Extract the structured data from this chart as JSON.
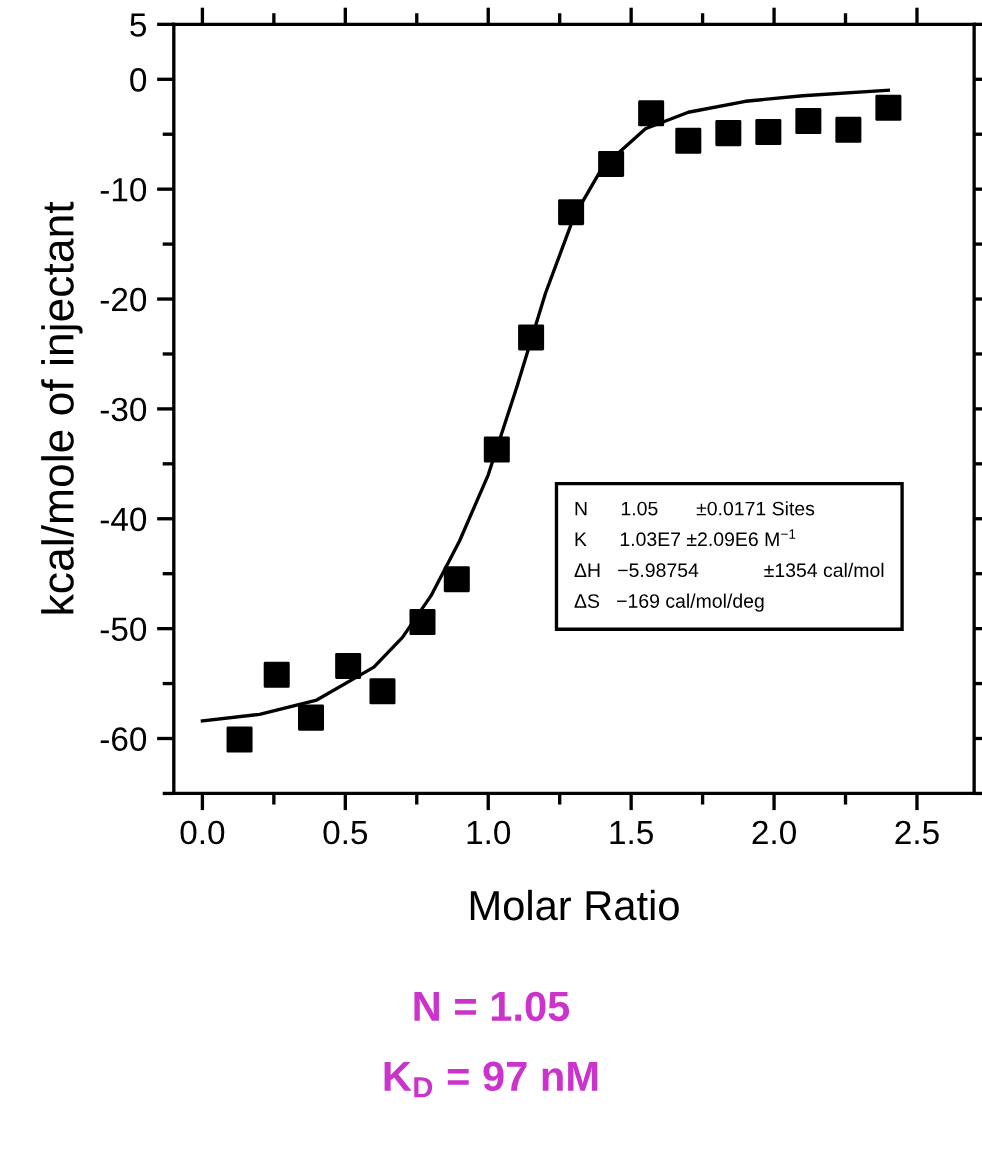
{
  "chart_data": {
    "type": "scatter",
    "xlabel": "Molar Ratio",
    "ylabel": "kcal/mole of injectant",
    "xlim": [
      -0.1,
      2.7
    ],
    "xticks": [
      {
        "value": 0,
        "label": "0.0"
      },
      0.5,
      {
        "value": 1,
        "label": "1.0"
      },
      1.5,
      {
        "value": 2,
        "label": "2.0"
      },
      2.5
    ],
    "ylim": [
      -65,
      5
    ],
    "yticks": [
      -60,
      -50,
      -40,
      -30,
      -20,
      -10,
      0,
      5
    ],
    "grid": false,
    "legend": false,
    "marker": "square",
    "series": [
      {
        "color": "#000000",
        "x": [
          0.13,
          0.26,
          0.38,
          0.51,
          0.63,
          0.77,
          0.89,
          1.03,
          1.15,
          1.29,
          1.43,
          1.57,
          1.7,
          1.84,
          1.98,
          2.12,
          2.26,
          2.4
        ],
        "values": [
          -60.1,
          -54.2,
          -58.1,
          -53.4,
          -55.7,
          -49.4,
          -45.5,
          -33.7,
          -23.5,
          -12.1,
          -7.7,
          -3.1,
          -5.6,
          -4.9,
          -4.8,
          -3.8,
          -4.6,
          -2.6
        ]
      },
      {
        "type": "line",
        "color": "#000000",
        "marker": "none",
        "x": [
          0.0,
          0.2,
          0.4,
          0.6,
          0.7,
          0.8,
          0.9,
          1.0,
          1.1,
          1.2,
          1.3,
          1.4,
          1.55,
          1.7,
          1.9,
          2.1,
          2.4
        ],
        "values": [
          -58.4,
          -57.8,
          -56.5,
          -53.5,
          -50.8,
          -47,
          -42,
          -36,
          -28,
          -19.5,
          -12.5,
          -8,
          -4.5,
          -3,
          -2,
          -1.5,
          -1
        ]
      }
    ],
    "annotations": [
      "N      1.05       ±0.0171 Sites",
      "K      1.03E7 ±2.09E6 M$^{−1}$",
      "ΔH   −5.98754            ±1354 cal/mol",
      "ΔS   −169 cal/mol/deg",
      "N = 1.05",
      "K$_{D}$ = 97 nM"
    ]
  }
}
